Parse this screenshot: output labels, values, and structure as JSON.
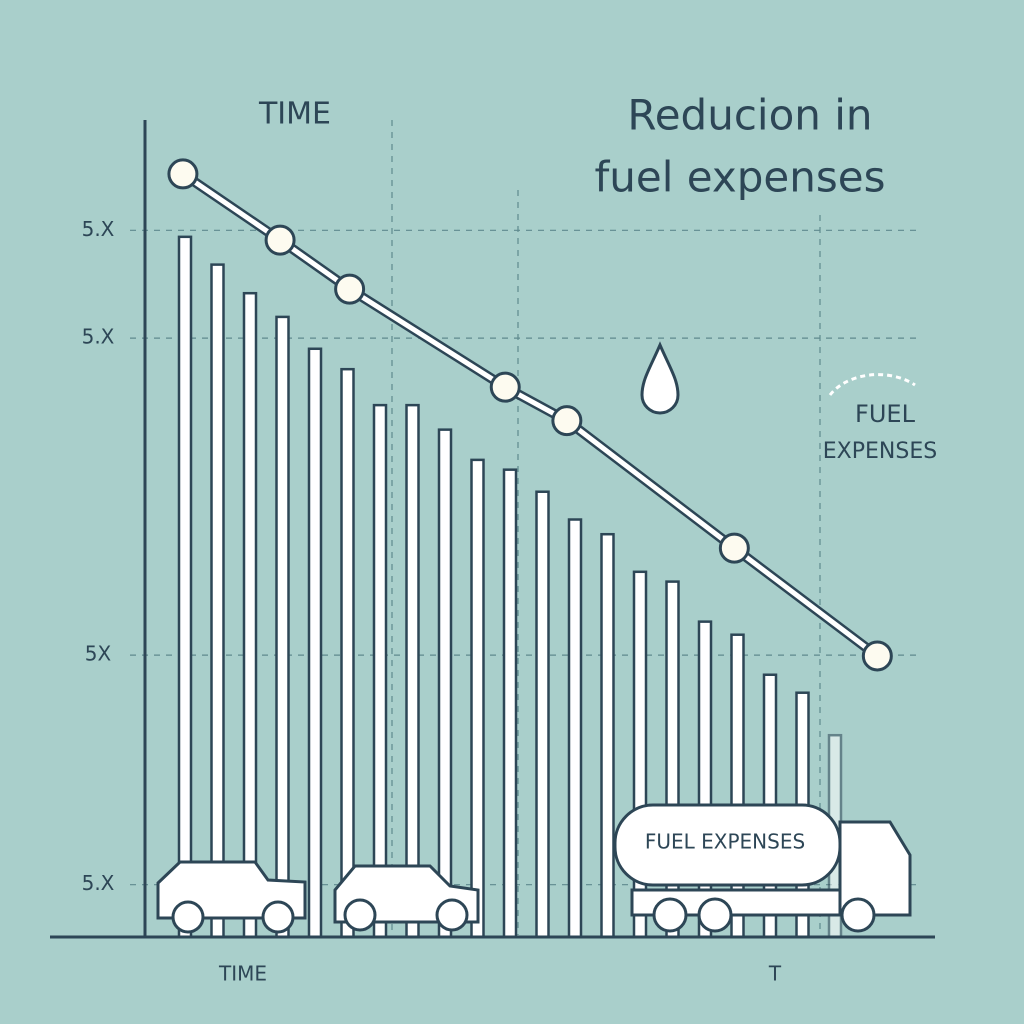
{
  "chart_data": [
    {
      "type": "bar",
      "title_lines": [
        "Reducion in",
        "fuel expenses"
      ],
      "annotations": [
        "TIME",
        "FUEL",
        "EXPENSES",
        "FUEL EXPENSES",
        "TIME",
        "T"
      ],
      "categories": [
        null,
        null,
        null,
        null,
        null,
        null,
        null,
        null,
        null,
        null,
        null,
        null,
        null,
        null,
        null,
        null,
        null,
        null,
        null,
        null,
        null
      ],
      "values": [
        85.7,
        82.3,
        78.8,
        75.9,
        72.0,
        69.5,
        65.1,
        65.1,
        62.1,
        58.4,
        57.2,
        54.5,
        51.1,
        49.3,
        44.7,
        43.5,
        38.6,
        37.0,
        32.1,
        29.9,
        24.7
      ],
      "color": "#ffffff",
      "ylim": [
        0,
        100
      ],
      "yticks": [
        {
          "value": 86.5,
          "label": "5.X"
        },
        {
          "value": 73.3,
          "label": "5.X"
        },
        {
          "value": 34.5,
          "label": "5X"
        },
        {
          "value": 6.4,
          "label": "5.X"
        }
      ],
      "grid": true
    },
    {
      "type": "line",
      "x": [
        4.8,
        17.1,
        25.9,
        45.6,
        53.4,
        74.6,
        92.7
      ],
      "values": [
        93.4,
        85.3,
        79.3,
        67.3,
        63.2,
        47.6,
        34.4
      ],
      "color": "#ffffff",
      "xlim": [
        0,
        100
      ],
      "ylim": [
        0,
        100
      ]
    }
  ]
}
